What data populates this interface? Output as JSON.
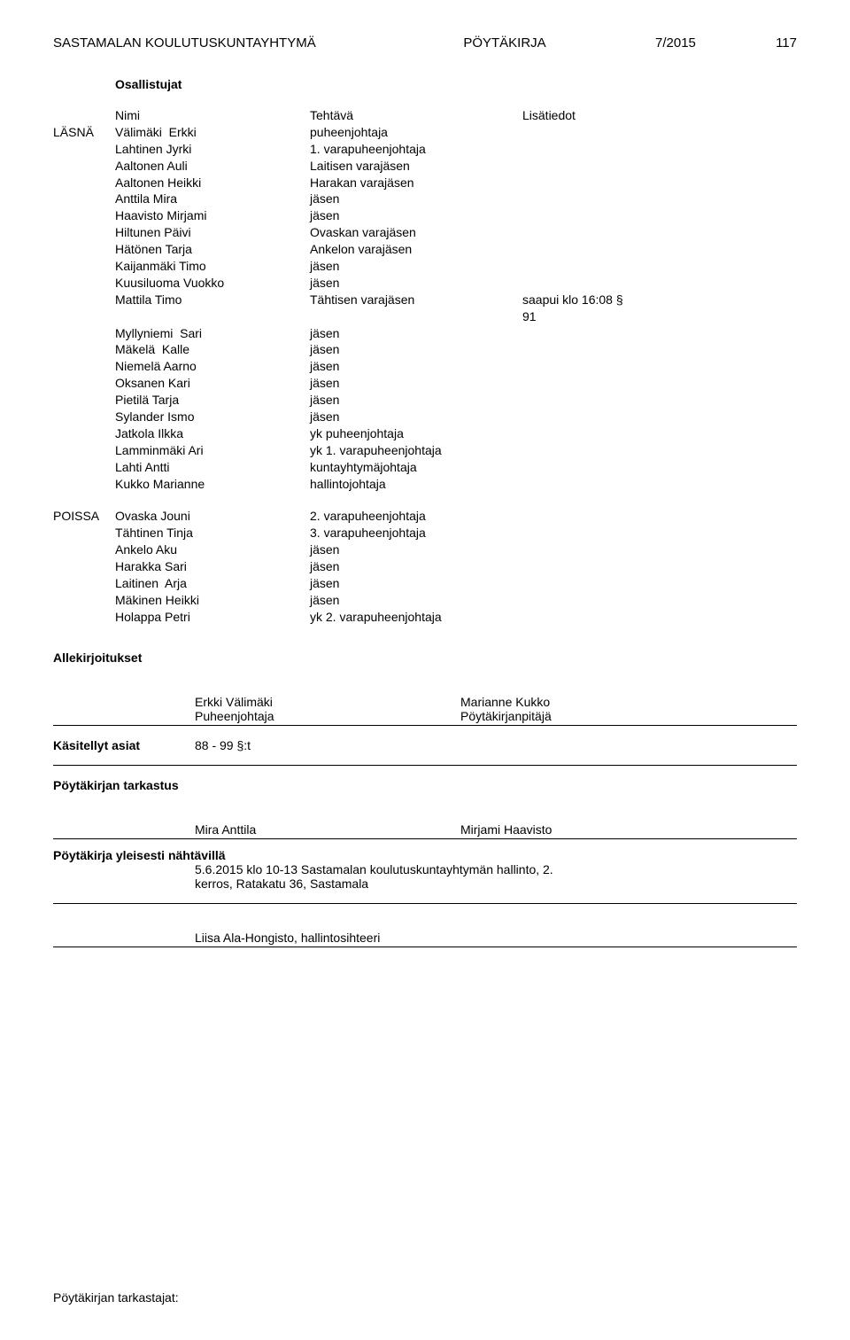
{
  "header": {
    "org": "SASTAMALAN KOULUTUSKUNTAYHTYMÄ",
    "doc_type": "PÖYTÄKIRJA",
    "doc_number": "7/2015",
    "page_number": "117"
  },
  "osallistujat_label": "Osallistujat",
  "col_headers": {
    "name": "Nimi",
    "role": "Tehtävä",
    "extra": "Lisätiedot"
  },
  "present": {
    "status_label": "LÄSNÄ",
    "rows": [
      {
        "name": "Välimäki  Erkki",
        "role": "puheenjohtaja",
        "extra": ""
      },
      {
        "name": "Lahtinen Jyrki",
        "role": "1. varapuheenjohtaja",
        "extra": ""
      },
      {
        "name": "Aaltonen Auli",
        "role": "Laitisen varajäsen",
        "extra": ""
      },
      {
        "name": "Aaltonen Heikki",
        "role": "Harakan varajäsen",
        "extra": ""
      },
      {
        "name": "Anttila Mira",
        "role": "jäsen",
        "extra": ""
      },
      {
        "name": "Haavisto Mirjami",
        "role": "jäsen",
        "extra": ""
      },
      {
        "name": "Hiltunen Päivi",
        "role": "Ovaskan varajäsen",
        "extra": ""
      },
      {
        "name": "Hätönen Tarja",
        "role": "Ankelon varajäsen",
        "extra": ""
      },
      {
        "name": "Kaijanmäki Timo",
        "role": "jäsen",
        "extra": ""
      },
      {
        "name": "Kuusiluoma Vuokko",
        "role": "jäsen",
        "extra": ""
      },
      {
        "name": "Mattila Timo",
        "role": "Tähtisen varajäsen",
        "extra": "saapui klo 16:08 §"
      },
      {
        "name": "",
        "role": "",
        "extra": "91"
      },
      {
        "name": "Myllyniemi  Sari",
        "role": "jäsen",
        "extra": ""
      },
      {
        "name": "Mäkelä  Kalle",
        "role": "jäsen",
        "extra": ""
      },
      {
        "name": "Niemelä Aarno",
        "role": "jäsen",
        "extra": ""
      },
      {
        "name": "Oksanen Kari",
        "role": "jäsen",
        "extra": ""
      },
      {
        "name": "Pietilä Tarja",
        "role": "jäsen",
        "extra": ""
      },
      {
        "name": "Sylander Ismo",
        "role": "jäsen",
        "extra": ""
      },
      {
        "name": "Jatkola Ilkka",
        "role": "yk puheenjohtaja",
        "extra": ""
      },
      {
        "name": "Lamminmäki Ari",
        "role": "yk 1. varapuheenjohtaja",
        "extra": ""
      },
      {
        "name": "Lahti Antti",
        "role": "kuntayhtymäjohtaja",
        "extra": ""
      },
      {
        "name": "Kukko Marianne",
        "role": "hallintojohtaja",
        "extra": ""
      }
    ]
  },
  "absent": {
    "status_label": "POISSA",
    "rows": [
      {
        "name": "Ovaska Jouni",
        "role": "2. varapuheenjohtaja",
        "extra": ""
      },
      {
        "name": "Tähtinen Tinja",
        "role": "3. varapuheenjohtaja",
        "extra": ""
      },
      {
        "name": "Ankelo Aku",
        "role": "jäsen",
        "extra": ""
      },
      {
        "name": "Harakka Sari",
        "role": "jäsen",
        "extra": ""
      },
      {
        "name": "Laitinen  Arja",
        "role": "jäsen",
        "extra": ""
      },
      {
        "name": "Mäkinen Heikki",
        "role": "jäsen",
        "extra": ""
      },
      {
        "name": "Holappa Petri",
        "role": "yk 2. varapuheenjohtaja",
        "extra": ""
      }
    ]
  },
  "signatures": {
    "label": "Allekirjoitukset",
    "left_name": "Erkki Välimäki",
    "left_role": "Puheenjohtaja",
    "right_name": "Marianne Kukko",
    "right_role": "Pöytäkirjanpitäjä"
  },
  "handled": {
    "label": "Käsitellyt asiat",
    "value": "88 - 99 §:t"
  },
  "inspection": {
    "label": "Pöytäkirjan tarkastus",
    "left": "Mira Anttila",
    "right": "Mirjami Haavisto"
  },
  "public_display": {
    "label": "Pöytäkirja yleisesti nähtävillä",
    "line1": "5.6.2015 klo 10-13 Sastamalan koulutuskuntayhtymän hallinto, 2.",
    "line2": "kerros, Ratakatu 36, Sastamala"
  },
  "secretary": "Liisa Ala-Hongisto, hallintosihteeri",
  "footer": "Pöytäkirjan tarkastajat:"
}
